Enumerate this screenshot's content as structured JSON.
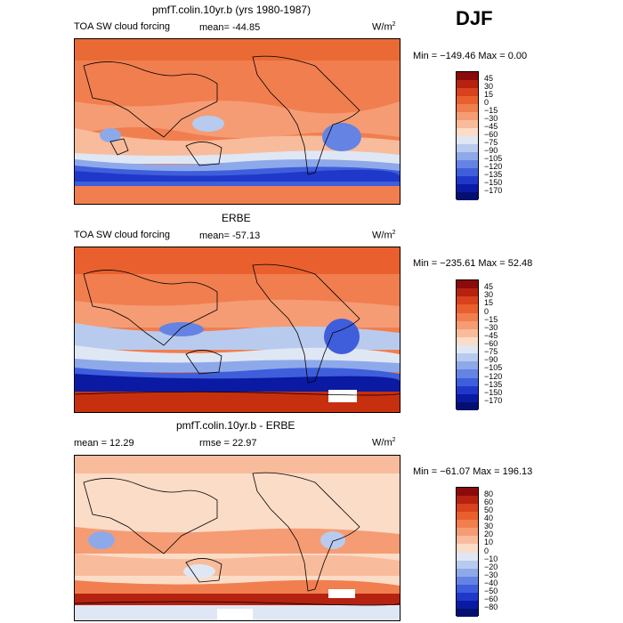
{
  "season": "DJF",
  "units_base": "W/m",
  "units_exp": "2",
  "panel1": {
    "title": "pmfT.colin.10yr.b (yrs 1980-1987)",
    "label": "TOA SW cloud forcing",
    "mean": "mean=  -44.85",
    "minmax": "Min = −149.46  Max =    0.00",
    "levels": [
      "45",
      "30",
      "15",
      "0",
      "−15",
      "−30",
      "−45",
      "−60",
      "−75",
      "−90",
      "−105",
      "−120",
      "−135",
      "−150",
      "−170"
    ],
    "colors": [
      "#8c0a0a",
      "#b5220f",
      "#d8421c",
      "#e9602e",
      "#f17e4f",
      "#f59c74",
      "#f8bc9c",
      "#fbdcc7",
      "#dfe7f4",
      "#b8cbee",
      "#8ea9ea",
      "#6583e3",
      "#3f5edb",
      "#1f38c9",
      "#0a1aa3",
      "#03106f"
    ]
  },
  "panel2": {
    "title": "ERBE",
    "label": "TOA SW cloud forcing",
    "mean": "mean=  -57.13",
    "minmax": "Min = −235.61  Max =   52.48",
    "levels": [
      "45",
      "30",
      "15",
      "0",
      "−15",
      "−30",
      "−45",
      "−60",
      "−75",
      "−90",
      "−105",
      "−120",
      "−135",
      "−150",
      "−170"
    ],
    "colors": [
      "#8c0a0a",
      "#b5220f",
      "#d8421c",
      "#e9602e",
      "#f17e4f",
      "#f59c74",
      "#f8bc9c",
      "#fbdcc7",
      "#dfe7f4",
      "#b8cbee",
      "#8ea9ea",
      "#6583e3",
      "#3f5edb",
      "#1f38c9",
      "#0a1aa3",
      "#03106f"
    ]
  },
  "panel3": {
    "title": "pmfT.colin.10yr.b - ERBE",
    "mean": "mean =   12.29",
    "rmse": "rmse =   22.97",
    "minmax": "Min = −61.07  Max = 196.13",
    "levels": [
      "80",
      "60",
      "50",
      "40",
      "30",
      "20",
      "10",
      "0",
      "−10",
      "−20",
      "−30",
      "−40",
      "−50",
      "−60",
      "−80"
    ],
    "colors": [
      "#8c0a0a",
      "#b5220f",
      "#d8421c",
      "#e9602e",
      "#f17e4f",
      "#f59c74",
      "#f8bc9c",
      "#fbdcc7",
      "#dfe7f4",
      "#b8cbee",
      "#8ea9ea",
      "#6583e3",
      "#3f5edb",
      "#1f38c9",
      "#0a1aa3",
      "#03106f"
    ]
  }
}
